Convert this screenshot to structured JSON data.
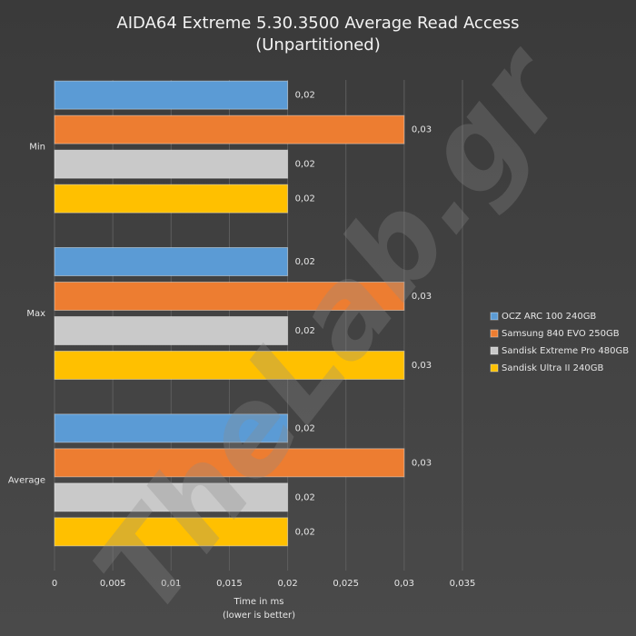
{
  "chart_data": {
    "type": "hbar",
    "title": [
      "AIDA64 Extreme 5.30.3500 Average Read Access",
      "(Unpartitioned)"
    ],
    "xlabel": [
      "Time in ms",
      "(lower is better)"
    ],
    "watermark": "TheLab.gr",
    "categories": [
      "Min",
      "Max",
      "Average"
    ],
    "series": [
      {
        "name": "OCZ ARC 100 240GB",
        "color": "#5b9bd5",
        "values": [
          0.02,
          0.02,
          0.02
        ],
        "value_labels": [
          "0,02",
          "0,02",
          "0,02"
        ]
      },
      {
        "name": "Samsung 840 EVO 250GB",
        "color": "#ed7d31",
        "values": [
          0.03,
          0.03,
          0.03
        ],
        "value_labels": [
          "0,03",
          "0,03",
          "0,03"
        ]
      },
      {
        "name": "Sandisk Extreme Pro 480GB",
        "color": "#c9c9c9",
        "values": [
          0.02,
          0.02,
          0.02
        ],
        "value_labels": [
          "0,02",
          "0,02",
          "0,02"
        ]
      },
      {
        "name": "Sandisk Ultra II 240GB",
        "color": "#ffc000",
        "values": [
          0.02,
          0.03,
          0.02
        ],
        "value_labels": [
          "0,02",
          "0,03",
          "0,02"
        ]
      }
    ],
    "xlim": [
      0,
      0.035
    ],
    "xticks": [
      0,
      {
        "value": 0.005,
        "label": "0,005"
      },
      {
        "value": 0.01,
        "label": "0,01"
      },
      {
        "value": 0.015,
        "label": "0,015"
      },
      {
        "value": 0.02,
        "label": "0,02"
      },
      {
        "value": 0.025,
        "label": "0,025"
      },
      {
        "value": 0.03,
        "label": "0,03"
      },
      {
        "value": 0.035,
        "label": "0,035"
      }
    ],
    "grid": true,
    "legend": "right"
  }
}
